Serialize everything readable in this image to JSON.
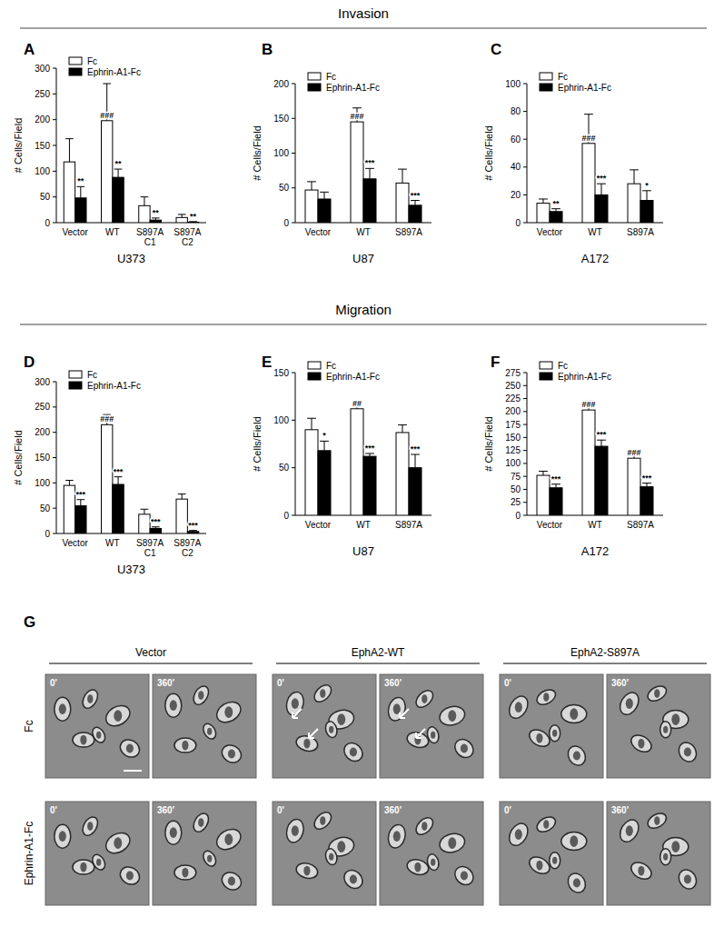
{
  "sections": [
    "Invasion",
    "Migration"
  ],
  "chart_data": [
    {
      "type": "bar",
      "title": "A",
      "x_label": "U373",
      "y_label": "# Cells/Field",
      "categories": [
        "Vector",
        "WT",
        "S897A C1",
        "S897A C2"
      ],
      "ylim": [
        0,
        300
      ],
      "yticks": [
        0,
        50,
        100,
        150,
        200,
        250,
        300
      ],
      "legend": "upper left",
      "series": [
        {
          "name": "Fc",
          "color": "#ffffff",
          "values": [
            118,
            198,
            33,
            10
          ],
          "errors": [
            45,
            72,
            17,
            6
          ],
          "annotations": [
            null,
            "###",
            null,
            null
          ]
        },
        {
          "name": "Ephrin-A1-Fc",
          "color": "#000000",
          "values": [
            48,
            88,
            5,
            1
          ],
          "errors": [
            22,
            16,
            4,
            1
          ],
          "annotations": [
            "**",
            "**",
            "**",
            "**"
          ]
        }
      ]
    },
    {
      "type": "bar",
      "title": "B",
      "x_label": "U87",
      "y_label": "# Cells/Field",
      "categories": [
        "Vector",
        "WT",
        "S897A"
      ],
      "ylim": [
        0,
        200
      ],
      "yticks": [
        0,
        50,
        100,
        150,
        200
      ],
      "legend": "upper left",
      "series": [
        {
          "name": "Fc",
          "color": "#ffffff",
          "values": [
            47,
            145,
            57
          ],
          "errors": [
            12,
            20,
            20
          ],
          "annotations": [
            null,
            "###",
            null
          ]
        },
        {
          "name": "Ephrin-A1-Fc",
          "color": "#000000",
          "values": [
            34,
            63,
            25
          ],
          "errors": [
            10,
            15,
            7
          ],
          "annotations": [
            null,
            "***",
            "***"
          ]
        }
      ]
    },
    {
      "type": "bar",
      "title": "C",
      "x_label": "A172",
      "y_label": "# Cells/Field",
      "categories": [
        "Vector",
        "WT",
        "S897A"
      ],
      "ylim": [
        0,
        100
      ],
      "yticks": [
        0,
        20,
        40,
        60,
        80,
        100
      ],
      "legend": "upper left",
      "series": [
        {
          "name": "Fc",
          "color": "#ffffff",
          "values": [
            14,
            57,
            28
          ],
          "errors": [
            3,
            21,
            10
          ],
          "annotations": [
            null,
            "###",
            null
          ]
        },
        {
          "name": "Ephrin-A1-Fc",
          "color": "#000000",
          "values": [
            8,
            20,
            16
          ],
          "errors": [
            2,
            8,
            7
          ],
          "annotations": [
            "**",
            "***",
            "*"
          ]
        }
      ]
    },
    {
      "type": "bar",
      "title": "D",
      "x_label": "U373",
      "y_label": "# Cells/Field",
      "categories": [
        "Vector",
        "WT",
        "S897A C1",
        "S897A C2"
      ],
      "ylim": [
        0,
        300
      ],
      "yticks": [
        0,
        50,
        100,
        150,
        200,
        250,
        300
      ],
      "legend": "upper left",
      "series": [
        {
          "name": "Fc",
          "color": "#ffffff",
          "values": [
            95,
            215,
            38,
            68
          ],
          "errors": [
            10,
            20,
            10,
            10
          ],
          "annotations": [
            null,
            "###",
            null,
            null
          ]
        },
        {
          "name": "Ephrin-A1-Fc",
          "color": "#000000",
          "values": [
            55,
            97,
            10,
            4
          ],
          "errors": [
            12,
            15,
            3,
            2
          ],
          "annotations": [
            "***",
            "***",
            "***",
            "***"
          ]
        }
      ]
    },
    {
      "type": "bar",
      "title": "E",
      "x_label": "U87",
      "y_label": "# Cells/Field",
      "categories": [
        "Vector",
        "WT",
        "S897A"
      ],
      "ylim": [
        0,
        150
      ],
      "yticks": [
        0,
        50,
        100,
        150
      ],
      "legend": "upper left",
      "series": [
        {
          "name": "Fc",
          "color": "#ffffff",
          "values": [
            90,
            112,
            87
          ],
          "errors": [
            12,
            8,
            8
          ],
          "annotations": [
            null,
            "##",
            null
          ]
        },
        {
          "name": "Ephrin-A1-Fc",
          "color": "#000000",
          "values": [
            68,
            62,
            50
          ],
          "errors": [
            10,
            3,
            14
          ],
          "annotations": [
            "*",
            "***",
            "***"
          ]
        }
      ]
    },
    {
      "type": "bar",
      "title": "F",
      "x_label": "A172",
      "y_label": "# Cells/Field",
      "categories": [
        "Vector",
        "WT",
        "S897A"
      ],
      "ylim": [
        0,
        275
      ],
      "yticks": [
        0,
        25,
        50,
        75,
        100,
        125,
        150,
        175,
        200,
        225,
        250,
        275
      ],
      "legend": "upper left",
      "series": [
        {
          "name": "Fc",
          "color": "#ffffff",
          "values": [
            77,
            203,
            110
          ],
          "errors": [
            8,
            17,
            14
          ],
          "annotations": [
            null,
            "###",
            "###"
          ]
        },
        {
          "name": "Ephrin-A1-Fc",
          "color": "#000000",
          "values": [
            53,
            133,
            55
          ],
          "errors": [
            7,
            12,
            7
          ],
          "annotations": [
            "***",
            "***",
            "***"
          ]
        }
      ]
    }
  ],
  "panel_g": {
    "label": "G",
    "columns": [
      "Vector",
      "EphA2-WT",
      "EphA2-S897A"
    ],
    "rows": [
      "Fc",
      "Ephrin-A1-Fc"
    ],
    "times": [
      "0'",
      "360'"
    ]
  }
}
